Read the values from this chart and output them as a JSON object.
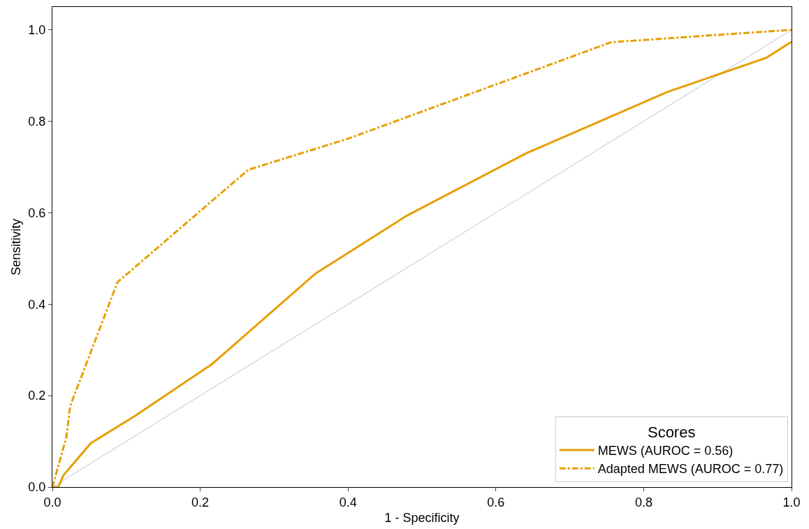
{
  "chart_data": {
    "type": "line",
    "xlabel": "1 - Specificity",
    "ylabel": "Sensitivity",
    "legend_title": "Scores",
    "legend": "bottom right",
    "marker": "none",
    "xlim": [
      0,
      1
    ],
    "ylim": [
      0,
      1.05
    ],
    "xticks": [
      {
        "value": 0,
        "label": "0.0"
      },
      0.2,
      0.4,
      0.6,
      0.8,
      {
        "value": 1,
        "label": "1.0"
      }
    ],
    "yticks": [
      {
        "value": 0,
        "label": "0.0"
      },
      0.2,
      0.4,
      0.6,
      0.8,
      {
        "value": 1,
        "label": "1.0"
      }
    ],
    "series": [
      {
        "name": "MEWS (AUROC = 0.56)",
        "color": "#e69f00",
        "line_style": "solid",
        "x": [
          0,
          0.008,
          0.015,
          0.052,
          0.112,
          0.216,
          0.356,
          0.48,
          0.641,
          0.832,
          0.966,
          1.0
        ],
        "values": [
          0,
          0,
          0.026,
          0.096,
          0.156,
          0.269,
          0.467,
          0.594,
          0.73,
          0.864,
          0.939,
          0.974
        ]
      },
      {
        "name": "Adapted MEWS (AUROC = 0.77)",
        "color": "#e69f00",
        "line_style": "dashdot",
        "x": [
          0,
          0.019,
          0.024,
          0.088,
          0.265,
          0.4,
          0.756,
          1.0
        ],
        "values": [
          0,
          0.11,
          0.177,
          0.448,
          0.694,
          0.762,
          0.973,
          1.0
        ]
      },
      {
        "color": "#d3d3d3",
        "line_style": "solid",
        "x": [
          0,
          1
        ],
        "values": [
          0,
          1
        ]
      }
    ]
  }
}
